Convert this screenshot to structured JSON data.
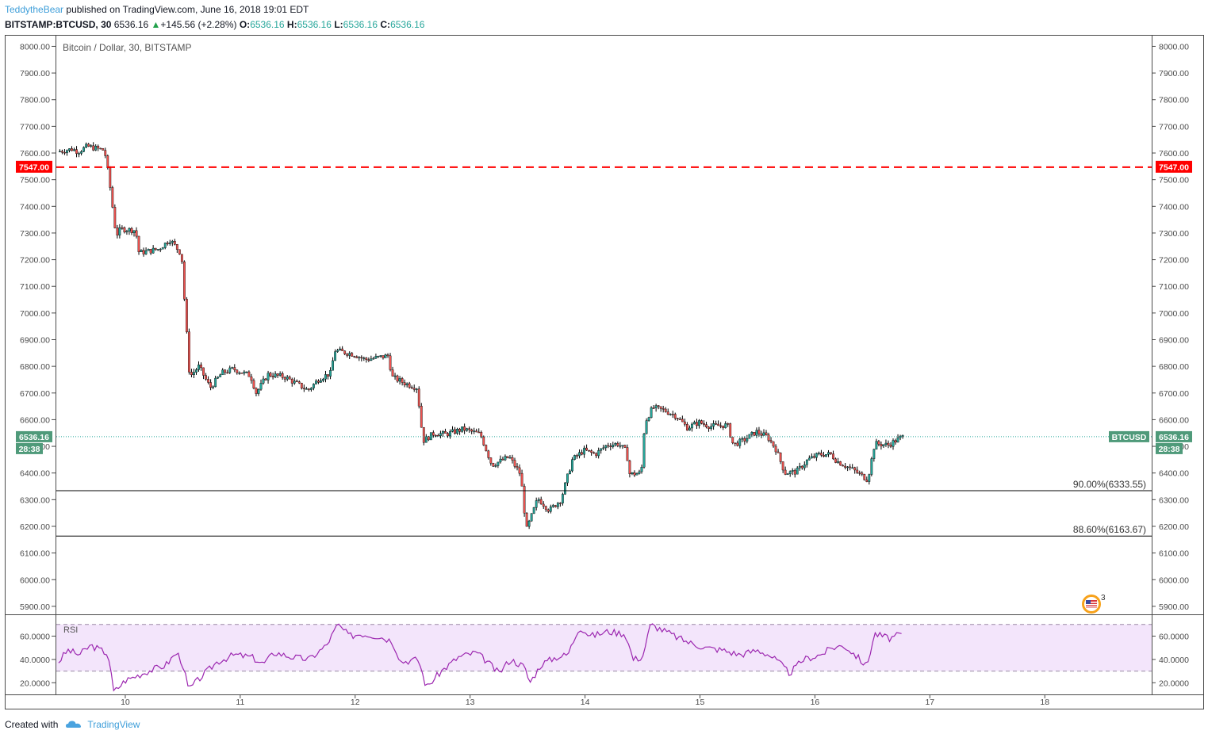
{
  "header": {
    "author": "TeddytheBear",
    "published_text": "published on TradingView.com, June 16, 2018 19:01 EDT",
    "symbol_interval": "BITSTAMP:BTCUSD, 30",
    "last_price": "6536.16",
    "change": "+145.56 (+2.28%)",
    "o_label": "O:",
    "o_value": "6536.16",
    "h_label": "H:",
    "h_value": "6536.16",
    "l_label": "L:",
    "l_value": "6536.16",
    "c_label": "C:",
    "c_value": "6536.16"
  },
  "footer": {
    "created_with": "Created with",
    "brand": "TradingView"
  },
  "colors": {
    "up": "#26a69a",
    "down": "#ef5350",
    "wick": "#000000",
    "resistance": "#ff0000",
    "rsi_line": "#9c27b0",
    "rsi_band": "#f3e5fb",
    "price_line": "#26a69a",
    "label_bg": "#4f9a7a"
  },
  "chart_data": [
    {
      "type": "candlestick",
      "title": "Bitcoin / Dollar, 30, BITSTAMP",
      "x_ticks": [
        "10",
        "11",
        "12",
        "13",
        "14",
        "15",
        "16",
        "17",
        "18"
      ],
      "y_ticks": [
        "5900.00",
        "6000.00",
        "6100.00",
        "6200.00",
        "6300.00",
        "6400.00",
        "6500.00",
        "6600.00",
        "6700.00",
        "6800.00",
        "6900.00",
        "7000.00",
        "7100.00",
        "7200.00",
        "7300.00",
        "7400.00",
        "7500.00",
        "7600.00",
        "7700.00",
        "7800.00",
        "7900.00",
        "8000.00"
      ],
      "ylim": [
        5870,
        8040
      ],
      "xlim_days": [
        9.4,
        18.93
      ],
      "price_anchors": [
        [
          9.42,
          7605
        ],
        [
          9.55,
          7615
        ],
        [
          9.6,
          7605
        ],
        [
          9.68,
          7625
        ],
        [
          9.83,
          7610
        ],
        [
          9.87,
          7500
        ],
        [
          9.93,
          7290
        ],
        [
          9.97,
          7315
        ],
        [
          10.1,
          7310
        ],
        [
          10.13,
          7225
        ],
        [
          10.3,
          7240
        ],
        [
          10.4,
          7275
        ],
        [
          10.5,
          7220
        ],
        [
          10.52,
          7080
        ],
        [
          10.57,
          6760
        ],
        [
          10.65,
          6800
        ],
        [
          10.75,
          6720
        ],
        [
          10.85,
          6775
        ],
        [
          10.95,
          6790
        ],
        [
          11.1,
          6765
        ],
        [
          11.15,
          6700
        ],
        [
          11.25,
          6770
        ],
        [
          11.4,
          6760
        ],
        [
          11.5,
          6735
        ],
        [
          11.6,
          6710
        ],
        [
          11.7,
          6755
        ],
        [
          11.8,
          6775
        ],
        [
          11.83,
          6860
        ],
        [
          12.0,
          6845
        ],
        [
          12.1,
          6825
        ],
        [
          12.3,
          6840
        ],
        [
          12.33,
          6760
        ],
        [
          12.45,
          6735
        ],
        [
          12.55,
          6720
        ],
        [
          12.6,
          6520
        ],
        [
          12.7,
          6550
        ],
        [
          12.8,
          6545
        ],
        [
          12.95,
          6565
        ],
        [
          13.1,
          6545
        ],
        [
          13.2,
          6430
        ],
        [
          13.35,
          6460
        ],
        [
          13.45,
          6395
        ],
        [
          13.5,
          6185
        ],
        [
          13.6,
          6305
        ],
        [
          13.7,
          6260
        ],
        [
          13.8,
          6300
        ],
        [
          13.9,
          6450
        ],
        [
          14.0,
          6485
        ],
        [
          14.1,
          6470
        ],
        [
          14.2,
          6505
        ],
        [
          14.3,
          6510
        ],
        [
          14.37,
          6480
        ],
        [
          14.4,
          6395
        ],
        [
          14.5,
          6400
        ],
        [
          14.53,
          6590
        ],
        [
          14.6,
          6645
        ],
        [
          14.7,
          6635
        ],
        [
          14.8,
          6615
        ],
        [
          14.9,
          6570
        ],
        [
          15.0,
          6590
        ],
        [
          15.1,
          6575
        ],
        [
          15.25,
          6580
        ],
        [
          15.3,
          6505
        ],
        [
          15.4,
          6525
        ],
        [
          15.5,
          6555
        ],
        [
          15.6,
          6535
        ],
        [
          15.67,
          6490
        ],
        [
          15.75,
          6400
        ],
        [
          15.85,
          6405
        ],
        [
          15.95,
          6450
        ],
        [
          16.05,
          6470
        ],
        [
          16.15,
          6470
        ],
        [
          16.2,
          6445
        ],
        [
          16.35,
          6410
        ],
        [
          16.47,
          6375
        ],
        [
          16.53,
          6510
        ],
        [
          16.65,
          6505
        ],
        [
          16.77,
          6536
        ]
      ],
      "resistance": {
        "price": 7547,
        "label": "7547.00"
      },
      "fib_levels": [
        {
          "price": 6333.55,
          "label": "90.00%(6333.55)"
        },
        {
          "price": 6163.67,
          "label": "88.60%(6163.67)"
        }
      ],
      "last_price": {
        "price": 6536.16,
        "label": "6536.16",
        "symbol": "BTCUSD",
        "countdown": "28:38"
      }
    },
    {
      "type": "line",
      "title": "RSI",
      "y_ticks": [
        "20.0000",
        "40.0000",
        "60.0000"
      ],
      "ylim": [
        10,
        78
      ],
      "band": [
        30,
        70
      ],
      "rsi_anchors": [
        [
          9.42,
          38
        ],
        [
          9.5,
          48
        ],
        [
          9.6,
          44
        ],
        [
          9.7,
          52
        ],
        [
          9.85,
          45
        ],
        [
          9.9,
          12
        ],
        [
          10.0,
          22
        ],
        [
          10.2,
          30
        ],
        [
          10.35,
          35
        ],
        [
          10.45,
          46
        ],
        [
          10.5,
          36
        ],
        [
          10.55,
          14
        ],
        [
          10.65,
          24
        ],
        [
          10.8,
          38
        ],
        [
          10.95,
          44
        ],
        [
          11.1,
          42
        ],
        [
          11.2,
          36
        ],
        [
          11.3,
          46
        ],
        [
          11.45,
          42
        ],
        [
          11.6,
          40
        ],
        [
          11.75,
          52
        ],
        [
          11.85,
          70
        ],
        [
          11.95,
          60
        ],
        [
          12.05,
          62
        ],
        [
          12.2,
          60
        ],
        [
          12.32,
          56
        ],
        [
          12.4,
          38
        ],
        [
          12.55,
          40
        ],
        [
          12.62,
          16
        ],
        [
          12.75,
          30
        ],
        [
          12.9,
          42
        ],
        [
          13.05,
          46
        ],
        [
          13.15,
          38
        ],
        [
          13.25,
          28
        ],
        [
          13.35,
          40
        ],
        [
          13.47,
          34
        ],
        [
          13.52,
          20
        ],
        [
          13.62,
          36
        ],
        [
          13.75,
          42
        ],
        [
          13.85,
          44
        ],
        [
          13.95,
          68
        ],
        [
          14.05,
          60
        ],
        [
          14.2,
          64
        ],
        [
          14.35,
          62
        ],
        [
          14.42,
          40
        ],
        [
          14.5,
          42
        ],
        [
          14.57,
          70
        ],
        [
          14.7,
          64
        ],
        [
          14.82,
          58
        ],
        [
          14.92,
          54
        ],
        [
          15.05,
          50
        ],
        [
          15.2,
          48
        ],
        [
          15.27,
          46
        ],
        [
          15.35,
          44
        ],
        [
          15.5,
          48
        ],
        [
          15.6,
          44
        ],
        [
          15.68,
          38
        ],
        [
          15.78,
          28
        ],
        [
          15.9,
          40
        ],
        [
          16.05,
          44
        ],
        [
          16.15,
          50
        ],
        [
          16.25,
          52
        ],
        [
          16.35,
          44
        ],
        [
          16.45,
          34
        ],
        [
          16.52,
          62
        ],
        [
          16.65,
          58
        ],
        [
          16.77,
          62
        ]
      ]
    }
  ]
}
